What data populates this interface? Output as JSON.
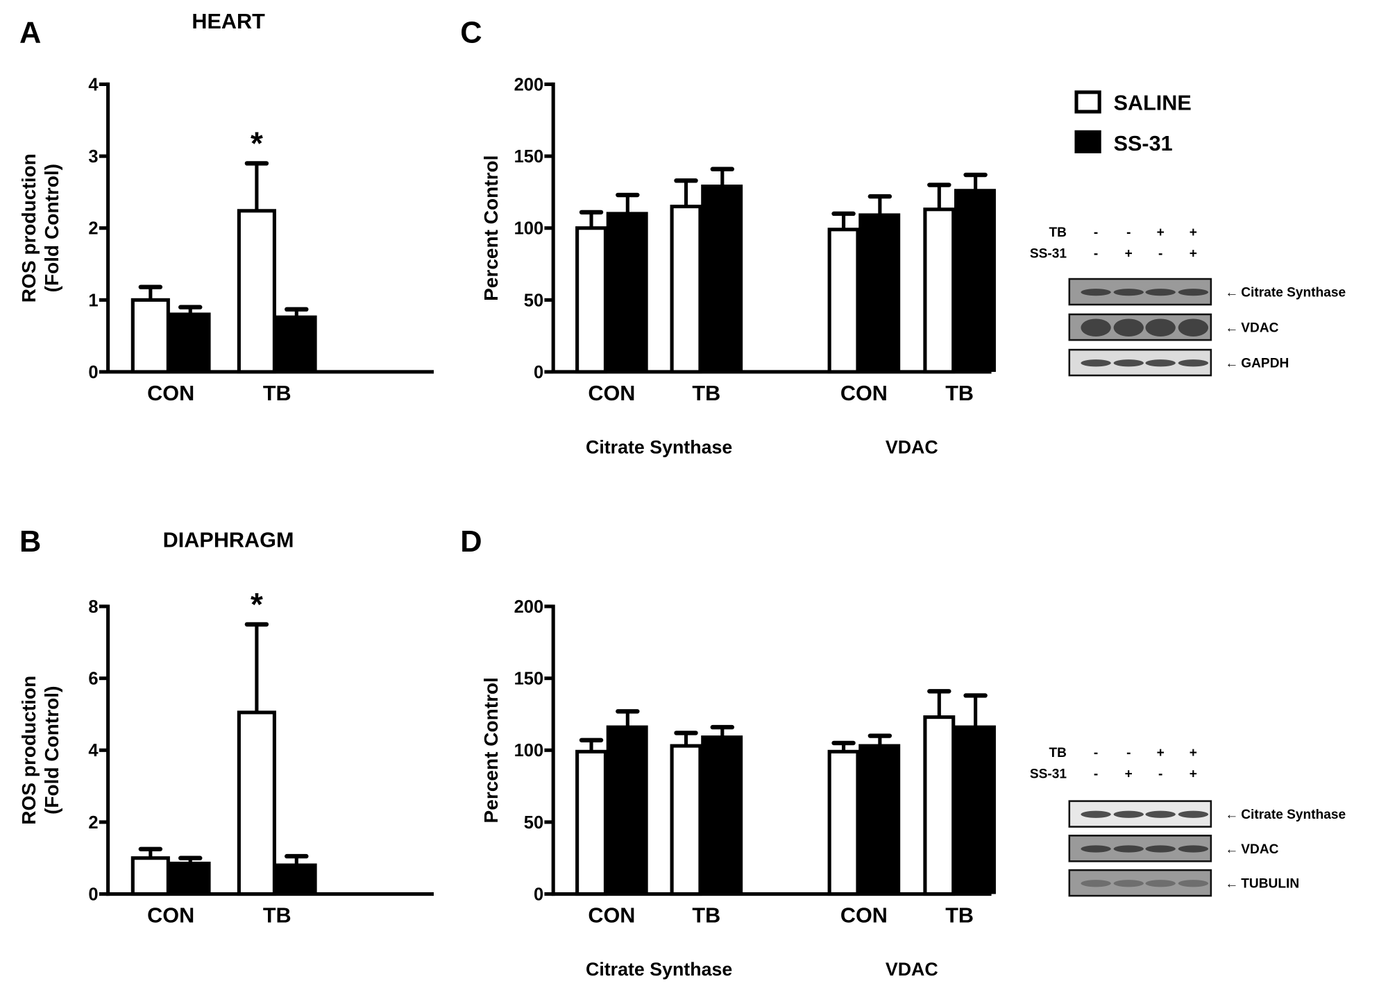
{
  "legend": {
    "items": [
      {
        "label": "SALINE",
        "fill": "#ffffff"
      },
      {
        "label": "SS-31",
        "fill": "#000000"
      }
    ]
  },
  "chart_data": [
    {
      "panel": "A",
      "type": "bar",
      "title": "HEART",
      "ylabel": [
        "ROS production",
        "(Fold Control)"
      ],
      "ylim": [
        0,
        4
      ],
      "yticks": [
        0,
        1,
        2,
        3,
        4
      ],
      "categories": [
        "CON",
        "TB"
      ],
      "group_labels": [],
      "series": [
        {
          "name": "SALINE",
          "values": [
            1.0,
            2.24
          ],
          "error_upper": [
            1.18,
            2.9
          ]
        },
        {
          "name": "SS-31",
          "values": [
            0.8,
            0.76
          ],
          "error_upper": [
            0.9,
            0.87
          ]
        }
      ],
      "annotations": [
        {
          "category_index": 1,
          "series_index": 0,
          "text": "*"
        }
      ]
    },
    {
      "panel": "B",
      "type": "bar",
      "title": "DIAPHRAGM",
      "ylabel": [
        "ROS production",
        "(Fold Control)"
      ],
      "ylim": [
        0,
        8
      ],
      "yticks": [
        0,
        2,
        4,
        6,
        8
      ],
      "categories": [
        "CON",
        "TB"
      ],
      "group_labels": [],
      "series": [
        {
          "name": "SALINE",
          "values": [
            1.0,
            5.05
          ],
          "error_upper": [
            1.25,
            7.5
          ]
        },
        {
          "name": "SS-31",
          "values": [
            0.85,
            0.8
          ],
          "error_upper": [
            1.0,
            1.05
          ]
        }
      ],
      "annotations": [
        {
          "category_index": 1,
          "series_index": 0,
          "text": "*"
        }
      ]
    },
    {
      "panel": "C",
      "type": "bar",
      "title": "",
      "ylabel": [
        "Percent Control"
      ],
      "ylim": [
        0,
        200
      ],
      "yticks": [
        0,
        50,
        100,
        150,
        200
      ],
      "categories": [
        "CON",
        "TB",
        "CON",
        "TB"
      ],
      "group_labels": [
        "Citrate Synthase",
        "VDAC"
      ],
      "series": [
        {
          "name": "SALINE",
          "values": [
            100,
            115,
            99,
            113
          ],
          "error_upper": [
            111,
            133,
            110,
            130
          ]
        },
        {
          "name": "SS-31",
          "values": [
            110,
            129,
            109,
            126
          ],
          "error_upper": [
            123,
            141,
            122,
            137
          ]
        }
      ],
      "annotations": []
    },
    {
      "panel": "D",
      "type": "bar",
      "title": "",
      "ylabel": [
        "Percent Control"
      ],
      "ylim": [
        0,
        200
      ],
      "yticks": [
        0,
        50,
        100,
        150,
        200
      ],
      "categories": [
        "CON",
        "TB",
        "CON",
        "TB"
      ],
      "group_labels": [
        "Citrate Synthase",
        "VDAC"
      ],
      "series": [
        {
          "name": "SALINE",
          "values": [
            99,
            103,
            99,
            123
          ],
          "error_upper": [
            107,
            112,
            105,
            141
          ]
        },
        {
          "name": "SS-31",
          "values": [
            116,
            109,
            103,
            116
          ],
          "error_upper": [
            127,
            116,
            110,
            138
          ]
        }
      ],
      "annotations": []
    }
  ],
  "blots": [
    {
      "panel": "C",
      "conditions": [
        {
          "label": "TB",
          "lanes": [
            "-",
            "-",
            "+",
            "+"
          ]
        },
        {
          "label": "SS-31",
          "lanes": [
            "-",
            "+",
            "-",
            "+"
          ]
        }
      ],
      "rows": [
        "Citrate Synthase",
        "VDAC",
        "GAPDH"
      ]
    },
    {
      "panel": "D",
      "conditions": [
        {
          "label": "TB",
          "lanes": [
            "-",
            "-",
            "+",
            "+"
          ]
        },
        {
          "label": "SS-31",
          "lanes": [
            "-",
            "+",
            "-",
            "+"
          ]
        }
      ],
      "rows": [
        "Citrate Synthase",
        "VDAC",
        "TUBULIN"
      ]
    }
  ]
}
